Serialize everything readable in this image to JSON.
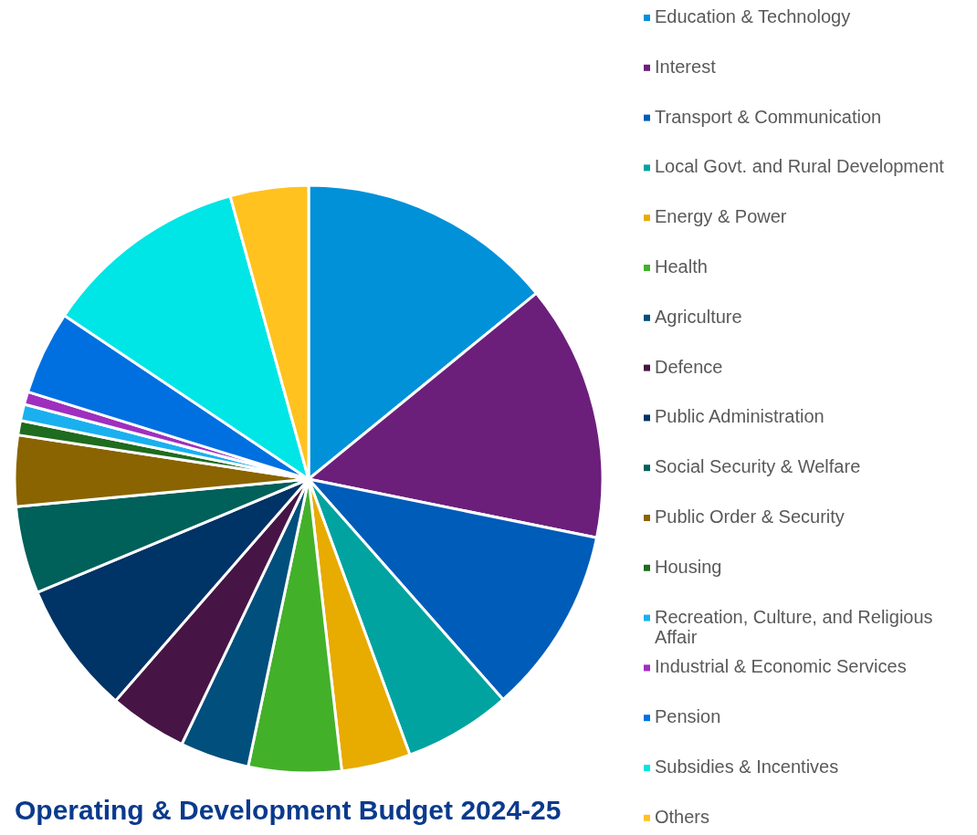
{
  "chart_data": {
    "type": "pie",
    "title": "Operating & Development Budget 2024-25",
    "legend": "right",
    "categories": [
      "Education & Technology",
      "Interest",
      "Transport & Communication",
      "Local Govt. and Rural Development",
      "Energy & Power",
      "Health",
      "Agriculture",
      "Defence",
      "Public Administration",
      "Social Security & Welfare",
      "Public Order & Security",
      "Housing",
      "Recreation, Culture, and Religious Affair",
      "Industrial & Economic Services",
      "Pension",
      "Subsidies & Incentives",
      "Others"
    ],
    "values": [
      14.1,
      14.1,
      10.3,
      5.9,
      3.8,
      5.1,
      3.8,
      4.3,
      7.3,
      4.8,
      3.9,
      0.8,
      0.9,
      0.7,
      4.6,
      11.3,
      4.3
    ],
    "colors": [
      "#0091d9",
      "#6b1f7b",
      "#005cb9",
      "#00a3a0",
      "#e8ab00",
      "#43b02a",
      "#004f7c",
      "#461545",
      "#003366",
      "#00605a",
      "#8a6400",
      "#1f6b1f",
      "#1ab0f0",
      "#9f2fbf",
      "#0070e0",
      "#00e5e5",
      "#ffc21f"
    ]
  }
}
